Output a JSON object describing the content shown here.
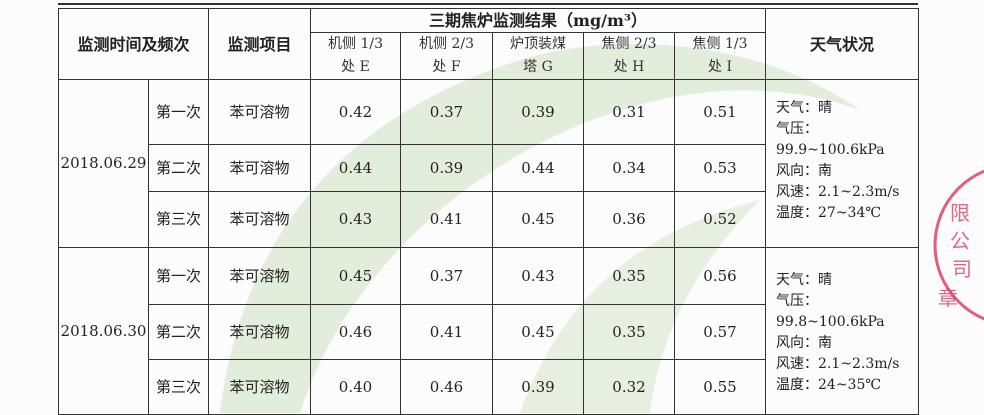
{
  "header": {
    "time_freq": "监测时间及频次",
    "item": "监测项目",
    "group_title": "三期焦炉监测结果（mg/m³）",
    "columns": [
      "机侧 1/3\n处 E",
      "机侧 2/3\n处 F",
      "炉顶装煤\n塔 G",
      "焦侧 2/3\n处 H",
      "焦侧 1/3\n处 I"
    ],
    "columns_lines": [
      [
        "机侧 1/3",
        "处 E"
      ],
      [
        "机侧 2/3",
        "处 F"
      ],
      [
        "炉顶装煤",
        "塔 G"
      ],
      [
        "焦侧 2/3",
        "处 H"
      ],
      [
        "焦侧 1/3",
        "处 I"
      ]
    ],
    "weather": "天气状况"
  },
  "groups": [
    {
      "date": "2018.06.29",
      "rows": [
        {
          "freq": "第一次",
          "item": "苯可溶物",
          "values": [
            "0.42",
            "0.37",
            "0.39",
            "0.31",
            "0.51"
          ]
        },
        {
          "freq": "第二次",
          "item": "苯可溶物",
          "values": [
            "0.44",
            "0.39",
            "0.44",
            "0.34",
            "0.53"
          ]
        },
        {
          "freq": "第三次",
          "item": "苯可溶物",
          "values": [
            "0.43",
            "0.41",
            "0.45",
            "0.36",
            "0.52"
          ]
        }
      ],
      "weather": [
        "天气：晴",
        "气压：",
        "99.9~100.6kPa",
        "风向：南",
        "风速：2.1~2.3m/s",
        "温度：27~34℃"
      ]
    },
    {
      "date": "2018.06.30",
      "rows": [
        {
          "freq": "第一次",
          "item": "苯可溶物",
          "values": [
            "0.45",
            "0.37",
            "0.43",
            "0.35",
            "0.56"
          ]
        },
        {
          "freq": "第二次",
          "item": "苯可溶物",
          "values": [
            "0.46",
            "0.41",
            "0.45",
            "0.35",
            "0.57"
          ]
        },
        {
          "freq": "第三次",
          "item": "苯可溶物",
          "values": [
            "0.40",
            "0.46",
            "0.39",
            "0.32",
            "0.55"
          ]
        }
      ],
      "weather": [
        "天气：晴",
        "气压：",
        "99.8~100.6kPa",
        "风向：南",
        "风速：2.1~2.3m/s",
        "温度：24~35℃"
      ]
    }
  ],
  "stamp": {
    "text": "限公司 章",
    "color": "#d9436a"
  },
  "watermark_color": "#cfe0c4"
}
